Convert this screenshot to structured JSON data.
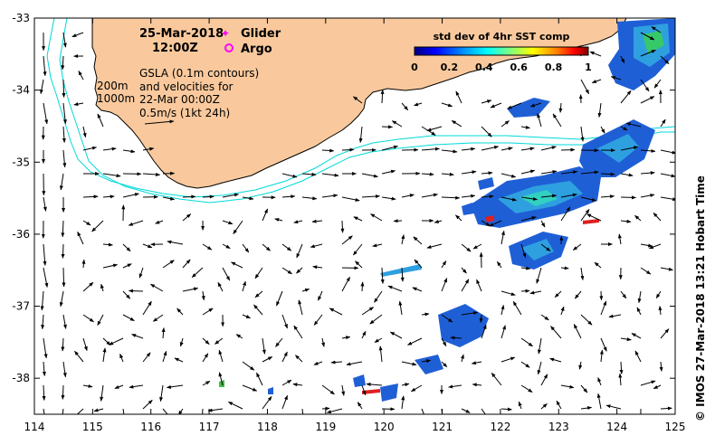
{
  "header": {
    "date": "25-Mar-2018",
    "time": "12:00Z",
    "glider_label": "Glider",
    "argo_label": "Argo"
  },
  "info": {
    "line1": "GSLA (0.1m contours)",
    "line2": "and velocities for",
    "line3": "22-Mar 00:00Z",
    "line4": "0.5m/s (1kt 24h)"
  },
  "isobaths": {
    "shallow": "200m",
    "deep": "1000m"
  },
  "colorbar": {
    "title": "std dev of 4hr SST comp",
    "ticks": [
      "0",
      "0.2",
      "0.4",
      "0.6",
      "0.8",
      "1"
    ]
  },
  "credit": "© IMOS 27-Mar-2018 13:21 Hobart Time",
  "axes": {
    "x_ticks": [
      "114",
      "115",
      "116",
      "117",
      "118",
      "119",
      "120",
      "121",
      "122",
      "123",
      "124",
      "125"
    ],
    "y_ticks": [
      "-33",
      "-34",
      "-35",
      "-36",
      "-37",
      "-38"
    ],
    "x_range": [
      114,
      125
    ],
    "y_range": [
      -38.5,
      -33
    ]
  },
  "colors": {
    "land": "#f9c99d",
    "coast": "#000000",
    "isobath": "#00d8d8",
    "glider": "#ff00ff",
    "argo": "#ff00ff"
  }
}
